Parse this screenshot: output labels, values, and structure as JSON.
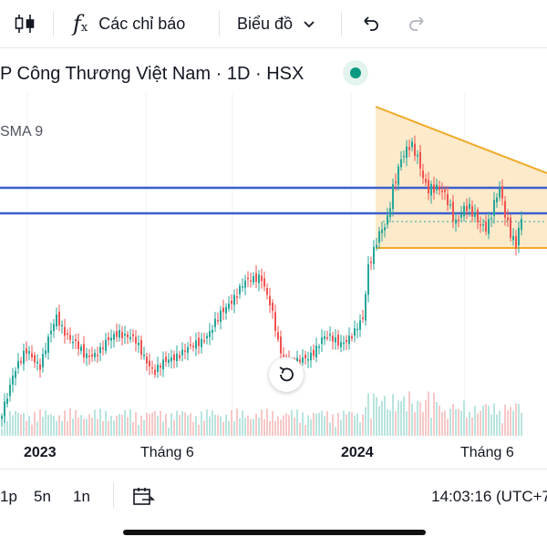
{
  "toolbar": {
    "indicators_label": "Các chỉ báo",
    "chart_type_label": "Biểu đồ"
  },
  "legend": {
    "symbol_title": "P Công Thương Việt Nam · 1D · HSX",
    "indicator": "SMA 9",
    "status_color": "#089981"
  },
  "chart_data": {
    "type": "candlestick",
    "x_ticks": [
      "2023",
      "Tháng 6",
      "2024",
      "Tháng 6"
    ],
    "bold_ticks": [
      "2023",
      "2024"
    ],
    "up_color": "#26a69a",
    "down_color": "#ef5350",
    "horizontal_lines": {
      "color": "#3a5fcd"
    },
    "triangle_pattern": {
      "color": "#f0a928",
      "fill": "#fde6c2"
    }
  },
  "bottom": {
    "ranges": [
      "1p",
      "5n",
      "1n"
    ],
    "clock": "14:03:16 (UTC+7"
  }
}
